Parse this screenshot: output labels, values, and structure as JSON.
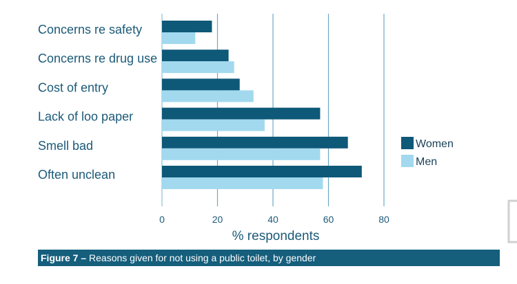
{
  "chart_data": {
    "type": "bar",
    "orientation": "horizontal",
    "categories": [
      "Concerns re safety",
      "Concerns re drug use",
      "Cost of entry",
      "Lack of loo paper",
      "Smell bad",
      "Often unclean"
    ],
    "series": [
      {
        "name": "Women",
        "color": "#0e5878",
        "values": [
          18,
          24,
          28,
          57,
          67,
          72
        ]
      },
      {
        "name": "Men",
        "color": "#a2d9ee",
        "values": [
          12,
          26,
          33,
          37,
          57,
          58
        ]
      }
    ],
    "xlim": [
      0,
      80
    ],
    "xticks": [
      "0",
      "20",
      "40",
      "60",
      "80"
    ],
    "xlabel": "% respondents",
    "grid": true,
    "legend_position": "right"
  },
  "caption": {
    "label": "Figure 7 –",
    "text": " Reasons given for not using a public toilet, by gender"
  }
}
